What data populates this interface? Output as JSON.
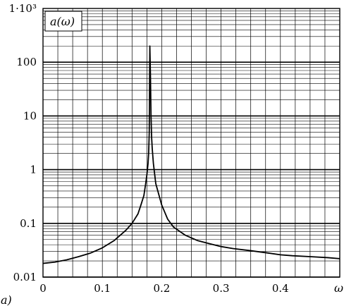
{
  "chart_data": {
    "type": "line",
    "panel_label": "a)",
    "legend_label": "a(ω)",
    "xlabel": "ω",
    "ylabel": "",
    "xlim": [
      0,
      0.5
    ],
    "ylim": [
      0.01,
      1000
    ],
    "yscale": "log",
    "grid": true,
    "x_ticks": [
      0,
      0.1,
      0.2,
      0.3,
      0.4
    ],
    "x_tick_labels": [
      "0",
      "0.1",
      "0.2",
      "0.3",
      "0.4"
    ],
    "y_ticks": [
      0.01,
      0.1,
      1,
      10,
      100,
      1000
    ],
    "y_tick_labels": [
      "0.01",
      "0.1",
      "1",
      "10",
      "100",
      "1·10³"
    ],
    "series": [
      {
        "color": "#000000",
        "x": [
          0.0,
          0.02,
          0.04,
          0.06,
          0.08,
          0.1,
          0.12,
          0.14,
          0.15,
          0.16,
          0.165,
          0.17,
          0.173,
          0.175,
          0.177,
          0.178,
          0.179,
          0.18,
          0.181,
          0.182,
          0.183,
          0.184,
          0.186,
          0.19,
          0.2,
          0.21,
          0.22,
          0.24,
          0.26,
          0.28,
          0.3,
          0.32,
          0.35,
          0.38,
          0.4,
          0.42,
          0.45,
          0.48,
          0.5
        ],
        "y": [
          0.018,
          0.019,
          0.021,
          0.024,
          0.028,
          0.035,
          0.048,
          0.075,
          0.1,
          0.15,
          0.22,
          0.33,
          0.55,
          0.8,
          1.3,
          2.0,
          5.0,
          200,
          60,
          10,
          4.0,
          2.5,
          1.3,
          0.55,
          0.22,
          0.12,
          0.085,
          0.06,
          0.048,
          0.042,
          0.037,
          0.034,
          0.031,
          0.028,
          0.026,
          0.025,
          0.024,
          0.023,
          0.022
        ]
      }
    ]
  }
}
